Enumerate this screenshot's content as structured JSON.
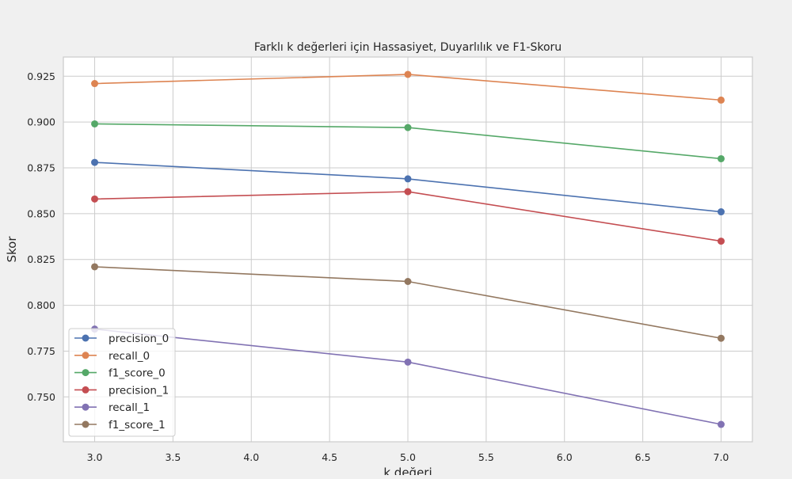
{
  "chart_data": {
    "type": "line",
    "title": "Farklı k değerleri için Hassasiyet, Duyarlılık ve F1-Skoru",
    "xlabel": "k değeri",
    "ylabel": "Skor",
    "x": [
      3,
      5,
      7
    ],
    "xlim": [
      2.8,
      7.2
    ],
    "ylim": [
      0.7255,
      0.9355
    ],
    "xticks": [
      3.0,
      3.5,
      4.0,
      4.5,
      5.0,
      5.5,
      6.0,
      6.5,
      7.0
    ],
    "xtick_labels": [
      "3.0",
      "3.5",
      "4.0",
      "4.5",
      "5.0",
      "5.5",
      "6.0",
      "6.5",
      "7.0"
    ],
    "yticks": [
      0.75,
      0.775,
      0.8,
      0.825,
      0.85,
      0.875,
      0.9,
      0.925
    ],
    "ytick_labels": [
      "0.750",
      "0.775",
      "0.800",
      "0.825",
      "0.850",
      "0.875",
      "0.900",
      "0.925"
    ],
    "grid": true,
    "legend_position": "lower-left",
    "series": [
      {
        "name": "precision_0",
        "color": "#4c72b0",
        "values": [
          0.878,
          0.869,
          0.851
        ]
      },
      {
        "name": "recall_0",
        "color": "#dd8452",
        "values": [
          0.921,
          0.926,
          0.912
        ]
      },
      {
        "name": "f1_score_0",
        "color": "#55a868",
        "values": [
          0.899,
          0.897,
          0.88
        ]
      },
      {
        "name": "precision_1",
        "color": "#c44e52",
        "values": [
          0.858,
          0.862,
          0.835
        ]
      },
      {
        "name": "recall_1",
        "color": "#8172b3",
        "values": [
          0.787,
          0.769,
          0.735
        ]
      },
      {
        "name": "f1_score_1",
        "color": "#937860",
        "values": [
          0.821,
          0.813,
          0.782
        ]
      }
    ]
  }
}
